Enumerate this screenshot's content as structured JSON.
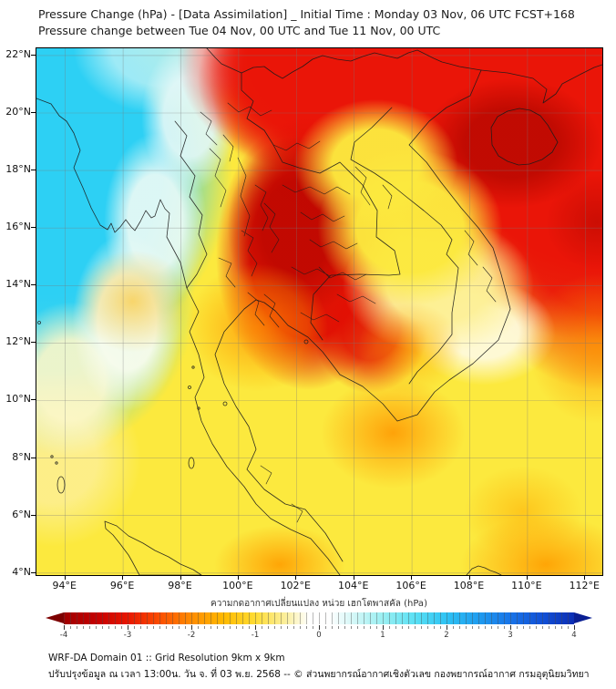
{
  "title": {
    "line1": "Pressure Change (hPa) - [Data Assimilation] _ Initial Time : Monday 03 Nov, 06 UTC FCST+168",
    "line2": "Pressure change between Tue 04 Nov, 00 UTC and Tue 11 Nov, 00 UTC"
  },
  "map": {
    "lat_labels": [
      "22°N",
      "20°N",
      "18°N",
      "16°N",
      "14°N",
      "12°N",
      "10°N",
      "8°N",
      "6°N",
      "4°N"
    ],
    "lat_values": [
      22,
      20,
      18,
      16,
      14,
      12,
      10,
      8,
      6,
      4
    ],
    "lon_labels": [
      "94°E",
      "96°E",
      "98°E",
      "100°E",
      "102°E",
      "104°E",
      "106°E",
      "108°E",
      "110°E",
      "112°E"
    ],
    "lon_values": [
      94,
      96,
      98,
      100,
      102,
      104,
      106,
      108,
      110,
      112
    ]
  },
  "colorbar": {
    "title": "ความกดอากาศเปลี่ยนแปลง หน่วย เฮกโตพาสคัล (hPa)",
    "tick_labels": [
      "-4",
      "-3",
      "-2",
      "-1",
      "0",
      "1",
      "2",
      "3",
      "4"
    ],
    "tick_values": [
      -4,
      -3,
      -2,
      -1,
      0,
      1,
      2,
      3,
      4
    ],
    "range": [
      -4,
      4
    ],
    "stops": [
      {
        "v": -4,
        "c": "#a00000"
      },
      {
        "v": -3.5,
        "c": "#c40000"
      },
      {
        "v": -3,
        "c": "#e81600"
      },
      {
        "v": -2.5,
        "c": "#fb4e00"
      },
      {
        "v": -2,
        "c": "#ff8c00"
      },
      {
        "v": -1.5,
        "c": "#ffba00"
      },
      {
        "v": -1,
        "c": "#ffdc33"
      },
      {
        "v": -0.5,
        "c": "#fbf0a3"
      },
      {
        "v": -0.15,
        "c": "#ffffff"
      },
      {
        "v": 0.15,
        "c": "#ffffff"
      },
      {
        "v": 0.5,
        "c": "#d9f8f8"
      },
      {
        "v": 1,
        "c": "#9aeff2"
      },
      {
        "v": 1.5,
        "c": "#5ae0f4"
      },
      {
        "v": 2,
        "c": "#2ec3f4"
      },
      {
        "v": 2.5,
        "c": "#1f9cef"
      },
      {
        "v": 3,
        "c": "#1874e8"
      },
      {
        "v": 3.5,
        "c": "#1150d6"
      },
      {
        "v": 4,
        "c": "#0c2eb4"
      }
    ],
    "arrow_left_color": "#7d0000",
    "arrow_right_color": "#0a1f93"
  },
  "footer": {
    "line1": "WRF-DA Domain 01 :: Grid Resolution 9km x 9km",
    "line2": "ปรับปรุงข้อมูล ณ เวลา 13:00น. วัน จ. ที่ 03 พ.ย. 2568 -- © ส่วนพยากรณ์อากาศเชิงตัวเลข กองพยากรณ์อากาศ กรมอุตุนิยมวิทยา"
  }
}
